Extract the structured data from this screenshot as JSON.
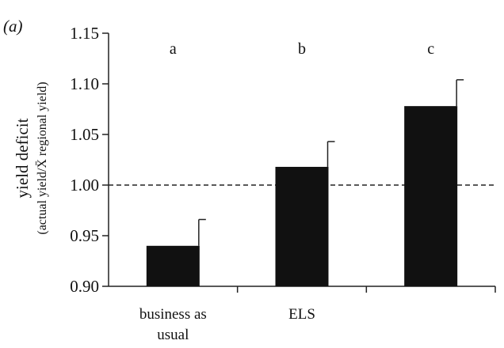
{
  "chart_data": {
    "type": "bar",
    "panel_label": "(a)",
    "ylabel": "yield deficit",
    "ylabel_sub": "(actual yield/X̄ regional yield)",
    "categories": [
      [
        "business as",
        "usual"
      ],
      [
        "ELS"
      ],
      [
        ""
      ]
    ],
    "values": [
      0.94,
      1.018,
      1.078
    ],
    "error_up": [
      0.966,
      1.043,
      1.104
    ],
    "group_letters": [
      "a",
      "b",
      "c"
    ],
    "ylim": [
      0.9,
      1.15
    ],
    "yticks": [
      0.9,
      0.95,
      1.0,
      1.05,
      1.1,
      1.15
    ],
    "ytick_labels": [
      "0.90",
      "0.95",
      "1.00",
      "1.05",
      "1.10",
      "1.15"
    ],
    "reference_line": 1.0,
    "bar_color": "#111111",
    "grid": false
  }
}
